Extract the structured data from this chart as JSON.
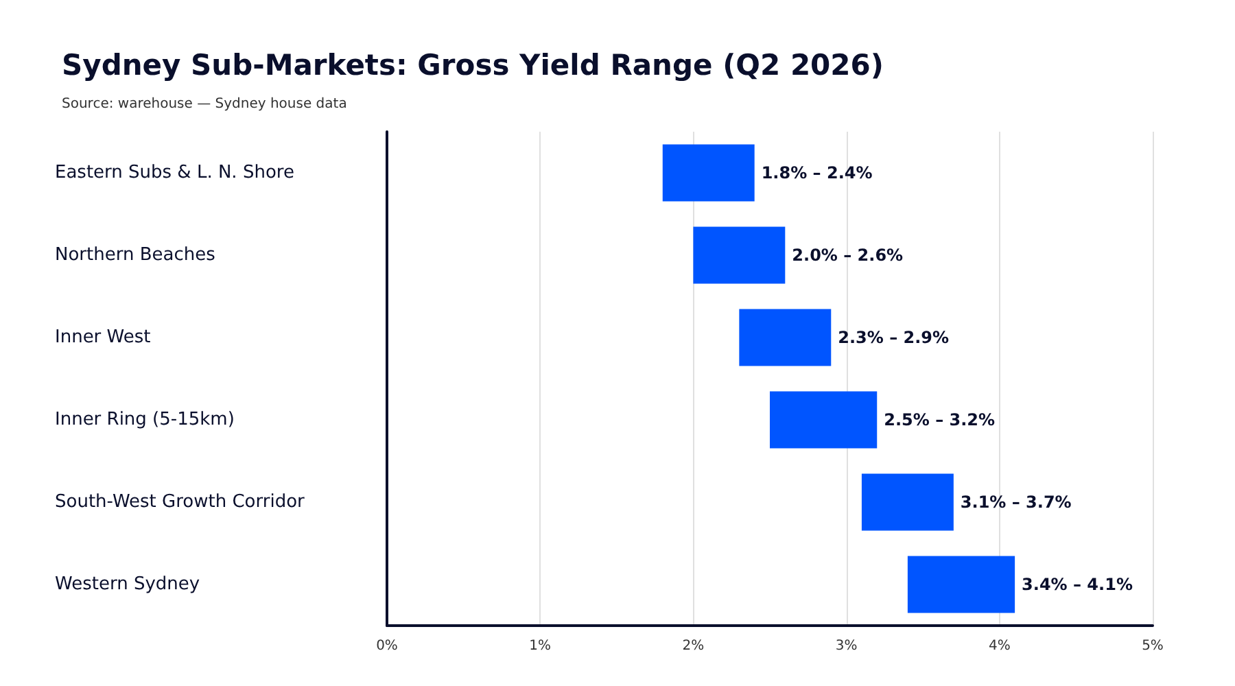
{
  "chart_data": {
    "type": "bar",
    "orientation": "horizontal",
    "title": "Sydney Sub-Markets: Gross Yield Range (Q2 2026)",
    "subtitle": "Source: warehouse — Sydney house data",
    "categories": [
      "Eastern Subs & L. N. Shore",
      "Northern Beaches",
      "Inner West",
      "Inner Ring (5-15km)",
      "South-West Growth Corridor",
      "Western Sydney"
    ],
    "base": [
      1.8,
      2.0,
      2.3,
      2.5,
      3.1,
      3.4
    ],
    "values": [
      0.6,
      0.6,
      0.6,
      0.7,
      0.6,
      0.7
    ],
    "annotations": [
      {
        "text": "1.8% – 2.4%",
        "x": 2.4,
        "y": "Eastern Subs & L. N. Shore"
      },
      {
        "text": "2.0% – 2.6%",
        "x": 2.6,
        "y": "Northern Beaches"
      },
      {
        "text": "2.3% – 2.9%",
        "x": 2.9,
        "y": "Inner West"
      },
      {
        "text": "2.5% – 3.2%",
        "x": 3.2,
        "y": "Inner Ring (5-15km)"
      },
      {
        "text": "3.1% – 3.7%",
        "x": 3.7,
        "y": "South-West Growth Corridor"
      },
      {
        "text": "3.4% – 4.1%",
        "x": 4.1,
        "y": "Western Sydney"
      }
    ],
    "color": "#0055ff",
    "xlim": [
      0,
      5
    ],
    "xticks": [
      {
        "value": 0,
        "label": "0%"
      },
      {
        "value": 1,
        "label": "1%"
      },
      {
        "value": 2,
        "label": "2%"
      },
      {
        "value": 3,
        "label": "3%"
      },
      {
        "value": 4,
        "label": "4%"
      },
      {
        "value": 5,
        "label": "5%"
      }
    ],
    "grid": "x"
  }
}
